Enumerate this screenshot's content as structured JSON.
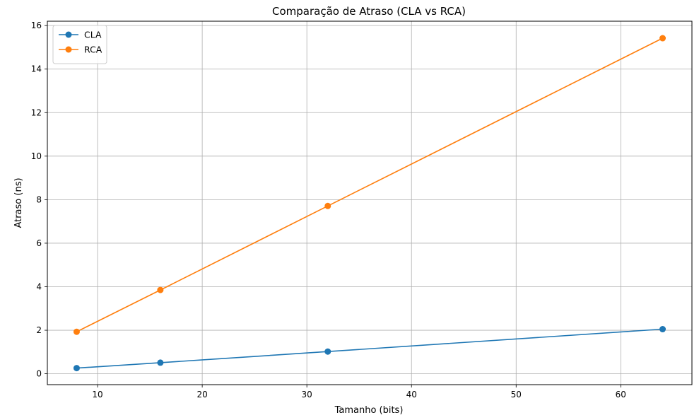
{
  "chart_data": {
    "type": "line",
    "title": "Comparação de Atraso (CLA vs RCA)",
    "xlabel": "Tamanho (bits)",
    "ylabel": "Atraso (ns)",
    "x": [
      8,
      16,
      32,
      64
    ],
    "series": [
      {
        "name": "CLA",
        "color": "#1f77b4",
        "values": [
          0.26,
          0.51,
          1.02,
          2.05
        ]
      },
      {
        "name": "RCA",
        "color": "#ff7f0e",
        "values": [
          1.93,
          3.85,
          7.71,
          15.42
        ]
      }
    ],
    "xlim": [
      5.2,
      66.8
    ],
    "ylim": [
      -0.5,
      16.2
    ],
    "xticks": [
      10,
      20,
      30,
      40,
      50,
      60
    ],
    "yticks": [
      0,
      2,
      4,
      6,
      8,
      10,
      12,
      14,
      16
    ],
    "xtick_labels": [
      "10",
      "20",
      "30",
      "40",
      "50",
      "60"
    ],
    "ytick_labels": [
      "0",
      "2",
      "4",
      "6",
      "8",
      "10",
      "12",
      "14",
      "16"
    ],
    "grid": true,
    "legend_position": "top-left",
    "marker": "circle"
  }
}
